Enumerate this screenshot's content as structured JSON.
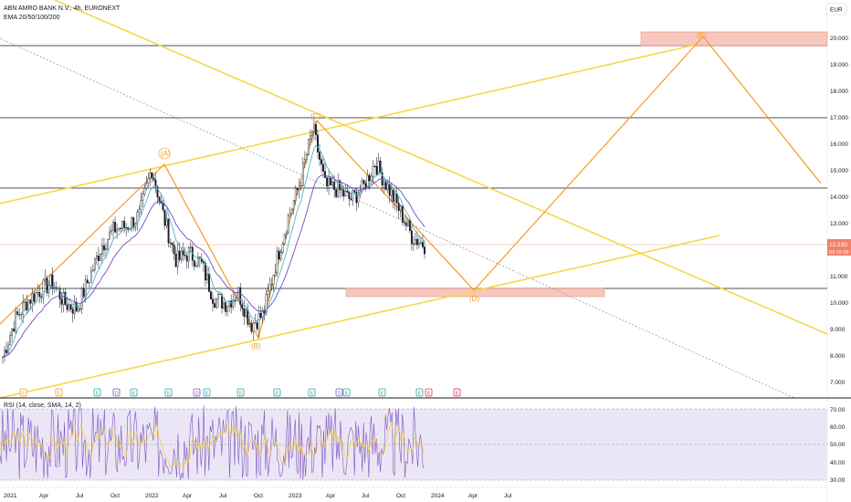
{
  "header": {
    "symbol_line": "ABN AMRO BANK N.V., 4h, EURONEXT",
    "ema_line": "EMA 20/50/100/200"
  },
  "currency_button": "EUR",
  "price_axis": {
    "ticks": [
      "20.000",
      "19.000",
      "18.000",
      "17.000",
      "16.000",
      "15.000",
      "14.000",
      "13.000",
      "11.000",
      "10.000",
      "9.000",
      "8.000",
      "7.000"
    ]
  },
  "current_price": {
    "value": "12.230",
    "countdown": "03:15:39"
  },
  "time_axis": {
    "labels": [
      "2021",
      "Apr",
      "Jul",
      "Oct",
      "2022",
      "Apr",
      "Jul",
      "Oct",
      "2023",
      "Apr",
      "Jul",
      "Oct",
      "2024",
      "Apr",
      "Jul"
    ]
  },
  "waves": {
    "A": "(A)",
    "B": "(B)",
    "C": "(C)",
    "D": "(D)",
    "E": "(E)"
  },
  "rsi": {
    "label": "RSI (14, close, SMA, 14, 2)",
    "ticks": [
      "70.00",
      "60.00",
      "50.00",
      "40.00",
      "30.00"
    ]
  },
  "events": {
    "E": "E",
    "D": "D"
  },
  "colors": {
    "background": "#ffffff",
    "chart_bg": "#ffffff",
    "candle_up": "#ffffff",
    "candle_down": "#131722",
    "ema20": "#4fb4c9",
    "ema50": "#6c4fc9",
    "trendline": "#f5d84a",
    "wave_path": "#f59b1e",
    "zone": "#f4b4a8",
    "rsi_bg": "#ebe6f5",
    "rsi_line": "#7e57c2",
    "rsi_signal": "#f5c518"
  },
  "chart_data": {
    "type": "line",
    "title": "ABN AMRO BANK N.V., 4h, EURONEXT",
    "y_axis": {
      "min": 7,
      "max": 20,
      "ticks": [
        20,
        19,
        18,
        17,
        16,
        15,
        14,
        13,
        11,
        10,
        9,
        8,
        7
      ],
      "position": "right"
    },
    "x_axis": {
      "labels": [
        "2021",
        "Apr",
        "Jul",
        "Oct",
        "2022",
        "Apr",
        "Jul",
        "Oct",
        "2023",
        "Apr",
        "Jul",
        "Oct",
        "2024",
        "Apr",
        "Jul"
      ]
    },
    "series": [
      {
        "type": "candlestick",
        "x": [
          "2021-01",
          "2021-02",
          "2021-03",
          "2021-04",
          "2021-05",
          "2021-06",
          "2021-07",
          "2021-08",
          "2021-09",
          "2021-10",
          "2021-11",
          "2021-12",
          "2022-01",
          "2022-02",
          "2022-03",
          "2022-04",
          "2022-05",
          "2022-06",
          "2022-07",
          "2022-08",
          "2022-09",
          "2022-10",
          "2022-11",
          "2022-12",
          "2023-01",
          "2023-02",
          "2023-03",
          "2023-04",
          "2023-05",
          "2023-06",
          "2023-07",
          "2023-08",
          "2023-09",
          "2023-10",
          "2023-11"
        ],
        "close": [
          8.0,
          9.4,
          10.1,
          10.5,
          10.8,
          10.0,
          9.8,
          11.0,
          12.2,
          12.8,
          12.9,
          13.3,
          15.1,
          13.2,
          11.6,
          11.9,
          11.5,
          10.2,
          10.0,
          10.4,
          9.2,
          9.6,
          11.5,
          13.2,
          14.6,
          16.6,
          14.4,
          14.3,
          13.9,
          14.3,
          15.3,
          14.4,
          13.5,
          12.5,
          12.2
        ]
      }
    ],
    "horizontal_levels": [
      17.0,
      14.4,
      12.23,
      10.6,
      19.8
    ],
    "zones": [
      {
        "from": 19.8,
        "to": 20.1,
        "label": "(E)"
      },
      {
        "from": 10.35,
        "to": 10.55,
        "label": "(D)"
      }
    ],
    "wave_points": [
      {
        "label": "(A)",
        "x": "2022-01",
        "y": 15.2
      },
      {
        "label": "(B)",
        "x": "2022-10",
        "y": 8.7
      },
      {
        "label": "(C)",
        "x": "2023-02",
        "y": 17.0
      },
      {
        "label": "(D)",
        "x": "2024-03",
        "y": 10.6
      },
      {
        "label": "(E)",
        "x": "2025-01",
        "y": 19.9
      }
    ],
    "rsi": {
      "ylim": [
        30,
        70
      ],
      "ticks": [
        70,
        60,
        50,
        40,
        30
      ],
      "levels": [
        70,
        50,
        30
      ]
    }
  }
}
